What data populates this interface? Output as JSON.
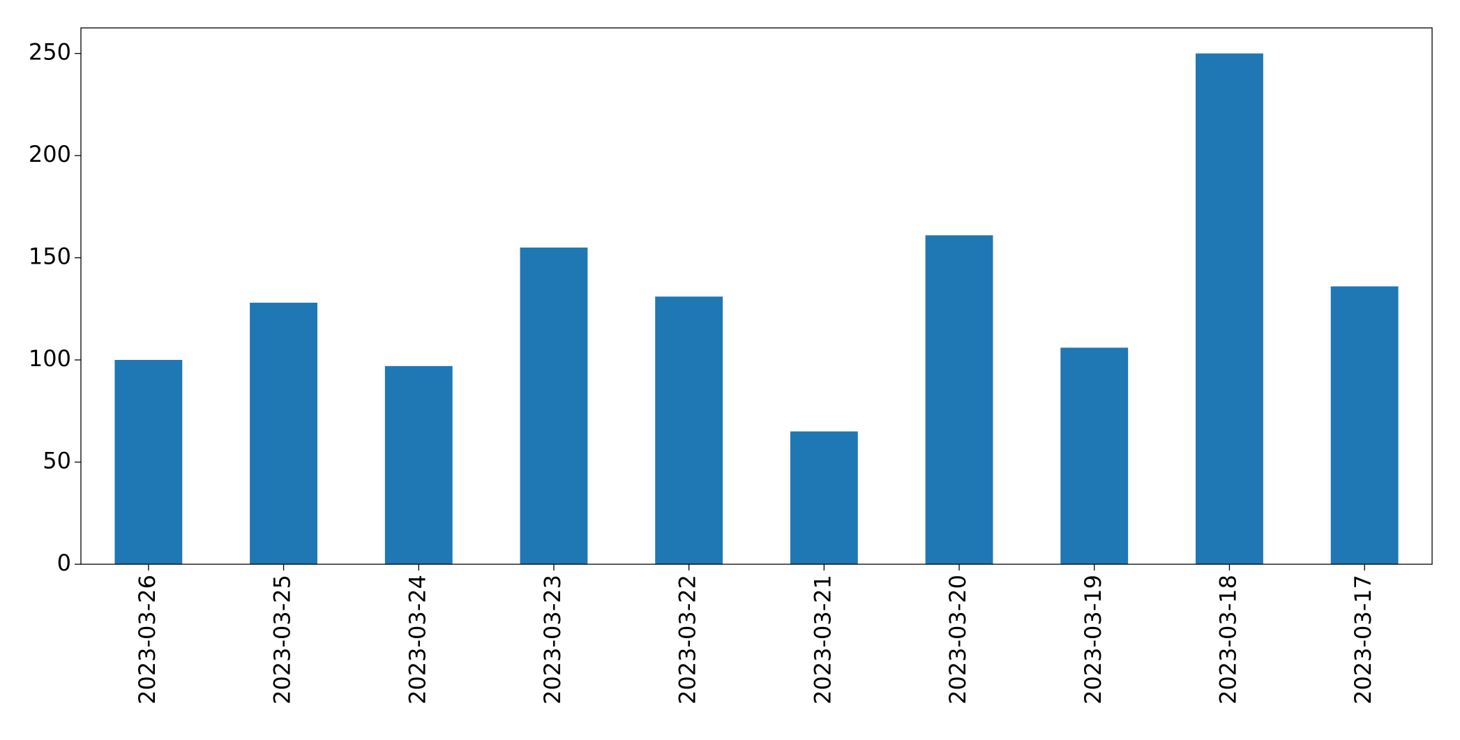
{
  "chart_data": {
    "type": "bar",
    "categories": [
      "2023-03-26",
      "2023-03-25",
      "2023-03-24",
      "2023-03-23",
      "2023-03-22",
      "2023-03-21",
      "2023-03-20",
      "2023-03-19",
      "2023-03-18",
      "2023-03-17"
    ],
    "values": [
      100,
      128,
      97,
      155,
      131,
      65,
      161,
      106,
      250,
      136
    ],
    "color": "#1f77b4",
    "ylim": [
      0,
      262.5
    ],
    "yticks": [
      0,
      50,
      100,
      150,
      200,
      250
    ],
    "grid": false
  }
}
